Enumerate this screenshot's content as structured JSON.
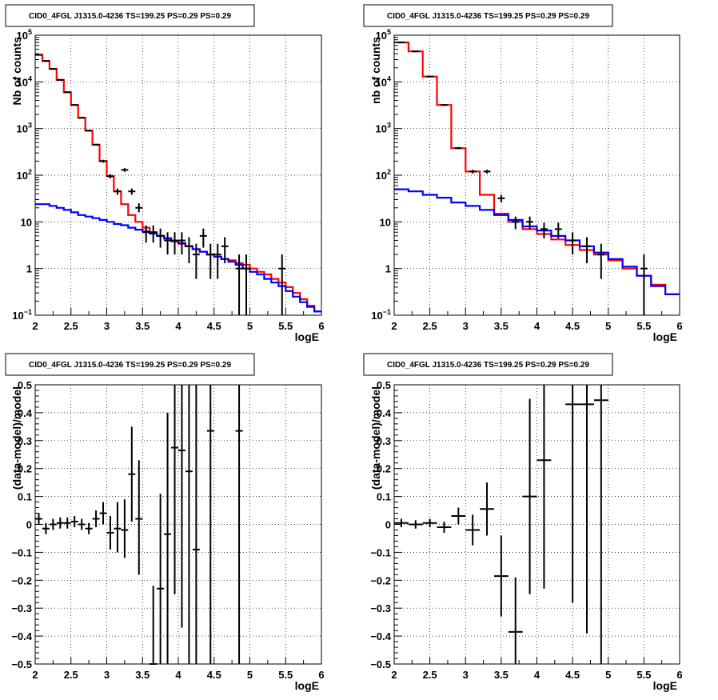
{
  "chart_data": [
    {
      "type": "line",
      "title": "CID0_4FGL J1315.0-4236 TS=199.25 PS=0.29 PS=0.29",
      "xlabel": "logE",
      "ylabel": "Nb of counts",
      "xlim": [
        2,
        6
      ],
      "ylim": [
        0.1,
        100000
      ],
      "yscale": "log",
      "grid": true,
      "xticks": [
        "2",
        "2.5",
        "3",
        "3.5",
        "4",
        "4.5",
        "5",
        "5.5",
        "6"
      ],
      "yticks": [
        {
          "value": 0.1,
          "base": "10",
          "exp": "−1"
        },
        {
          "value": 1,
          "label": "1"
        },
        {
          "value": 10,
          "label": "10"
        },
        {
          "value": 100,
          "base": "10",
          "exp": "2"
        },
        {
          "value": 1000,
          "base": "10",
          "exp": "3"
        },
        {
          "value": 10000,
          "base": "10",
          "exp": "4"
        },
        {
          "value": 100000,
          "base": "10",
          "exp": "5"
        }
      ],
      "bin_edges": [
        2.0,
        2.1,
        2.2,
        2.3,
        2.4,
        2.5,
        2.6,
        2.7,
        2.8,
        2.9,
        3.0,
        3.1,
        3.2,
        3.3,
        3.4,
        3.5,
        3.6,
        3.7,
        3.8,
        3.9,
        4.0,
        4.1,
        4.2,
        4.3,
        4.4,
        4.5,
        4.6,
        4.7,
        4.8,
        4.9,
        5.0,
        5.1,
        5.2,
        5.3,
        5.4,
        5.5,
        5.6,
        5.7,
        5.8,
        5.9,
        6.0
      ],
      "series": [
        {
          "color": "#ff0000",
          "style": "step",
          "values": [
            38000,
            28000,
            19000,
            11000,
            6000,
            3200,
            1700,
            900,
            450,
            200,
            95,
            45,
            24,
            14,
            10,
            7.5,
            6,
            5,
            4.5,
            3.8,
            3.4,
            3.0,
            2.6,
            2.3,
            2.0,
            1.8,
            1.6,
            1.5,
            1.3,
            1.2,
            1.0,
            0.85,
            0.75,
            0.6,
            0.5,
            0.4,
            0.3,
            0.22,
            0.16,
            0.12
          ]
        },
        {
          "color": "#0000ff",
          "style": "step",
          "values": [
            24,
            24,
            22,
            20,
            18,
            16,
            14,
            13,
            12,
            11,
            10,
            9,
            8.5,
            7.5,
            6.8,
            6.2,
            5.6,
            5.0,
            4.4,
            3.9,
            3.5,
            3.0,
            2.6,
            2.3,
            2.0,
            1.8,
            1.6,
            1.4,
            1.2,
            1.0,
            0.85,
            0.75,
            0.6,
            0.5,
            0.42,
            0.33,
            0.25,
            0.19,
            0.15,
            0.12
          ]
        }
      ],
      "points": [
        {
          "x": 2.05,
          "y": 38000,
          "lo": 37600,
          "hi": 38400
        },
        {
          "x": 2.15,
          "y": 28000,
          "lo": 27700,
          "hi": 28300
        },
        {
          "x": 2.25,
          "y": 19000,
          "lo": 18700,
          "hi": 19300
        },
        {
          "x": 2.35,
          "y": 11000,
          "lo": 10800,
          "hi": 11200
        },
        {
          "x": 2.45,
          "y": 6000,
          "lo": 5900,
          "hi": 6100
        },
        {
          "x": 2.55,
          "y": 3200,
          "lo": 3140,
          "hi": 3260
        },
        {
          "x": 2.65,
          "y": 1700,
          "lo": 1660,
          "hi": 1740
        },
        {
          "x": 2.75,
          "y": 900,
          "lo": 870,
          "hi": 930
        },
        {
          "x": 2.85,
          "y": 450,
          "lo": 430,
          "hi": 470
        },
        {
          "x": 2.95,
          "y": 200,
          "lo": 186,
          "hi": 214
        },
        {
          "x": 3.05,
          "y": 95,
          "lo": 85,
          "hi": 105
        },
        {
          "x": 3.15,
          "y": 45,
          "lo": 38,
          "hi": 52
        },
        {
          "x": 3.25,
          "y": 130,
          "lo": 118,
          "hi": 142
        },
        {
          "x": 3.35,
          "y": 45,
          "lo": 38,
          "hi": 52
        },
        {
          "x": 3.45,
          "y": 20,
          "lo": 16,
          "hi": 25
        },
        {
          "x": 3.55,
          "y": 6,
          "lo": 3.6,
          "hi": 8.4
        },
        {
          "x": 3.65,
          "y": 6,
          "lo": 3.6,
          "hi": 8.4
        },
        {
          "x": 3.75,
          "y": 5,
          "lo": 2.8,
          "hi": 7.2
        },
        {
          "x": 3.85,
          "y": 4,
          "lo": 2,
          "hi": 6
        },
        {
          "x": 3.95,
          "y": 4,
          "lo": 2,
          "hi": 6
        },
        {
          "x": 4.05,
          "y": 4,
          "lo": 2,
          "hi": 6
        },
        {
          "x": 4.15,
          "y": 3,
          "lo": 1.3,
          "hi": 4.7
        },
        {
          "x": 4.25,
          "y": 2,
          "lo": 0.6,
          "hi": 3.4
        },
        {
          "x": 4.35,
          "y": 5,
          "lo": 2.8,
          "hi": 7.2
        },
        {
          "x": 4.45,
          "y": 2,
          "lo": 0.6,
          "hi": 3.4
        },
        {
          "x": 4.55,
          "y": 2,
          "lo": 0.6,
          "hi": 3.4
        },
        {
          "x": 4.65,
          "y": 3,
          "lo": 1.3,
          "hi": 4.7
        },
        {
          "x": 4.85,
          "y": 1,
          "lo": 0.1,
          "hi": 2
        },
        {
          "x": 4.95,
          "y": 1,
          "lo": 0.1,
          "hi": 2
        },
        {
          "x": 5.45,
          "y": 1,
          "lo": 0.1,
          "hi": 2
        }
      ]
    },
    {
      "type": "line",
      "title": "CID0_4FGL J1315.0-4236 TS=199.25 PS=0.29 PS=0.29",
      "xlabel": "logE",
      "ylabel": "nb of counts",
      "xlim": [
        2,
        6
      ],
      "ylim": [
        0.1,
        100000
      ],
      "yscale": "log",
      "grid": true,
      "xticks": [
        "2",
        "2.5",
        "3",
        "3.5",
        "4",
        "4.5",
        "5",
        "5.5",
        "6"
      ],
      "yticks": [
        {
          "value": 0.1,
          "base": "10",
          "exp": "−1"
        },
        {
          "value": 1,
          "label": "1"
        },
        {
          "value": 10,
          "label": "10"
        },
        {
          "value": 100,
          "base": "10",
          "exp": "2"
        },
        {
          "value": 1000,
          "base": "10",
          "exp": "3"
        },
        {
          "value": 10000,
          "base": "10",
          "exp": "4"
        },
        {
          "value": 100000,
          "base": "10",
          "exp": "5"
        }
      ],
      "bin_edges": [
        2.0,
        2.2,
        2.4,
        2.6,
        2.8,
        3.0,
        3.2,
        3.4,
        3.6,
        3.8,
        4.0,
        4.2,
        4.4,
        4.6,
        4.8,
        5.0,
        5.2,
        5.4,
        5.6,
        5.8,
        6.0
      ],
      "series": [
        {
          "color": "#ff0000",
          "style": "step",
          "values": [
            70000,
            45000,
            13000,
            3200,
            380,
            120,
            38,
            15,
            10,
            7,
            5.5,
            4.2,
            3.2,
            2.5,
            2.0,
            1.5,
            1.0,
            0.7,
            0.45,
            0.28
          ]
        },
        {
          "color": "#0000ff",
          "style": "step",
          "values": [
            50,
            45,
            38,
            33,
            26,
            22,
            18,
            14,
            11,
            8,
            6.5,
            5,
            4,
            3,
            2.2,
            1.6,
            1.1,
            0.7,
            0.42,
            0.28
          ]
        }
      ],
      "points": [
        {
          "x": 2.1,
          "y": 70000,
          "lo": 69700,
          "hi": 70300
        },
        {
          "x": 2.3,
          "y": 45000,
          "lo": 44800,
          "hi": 45200
        },
        {
          "x": 2.5,
          "y": 13000,
          "lo": 12880,
          "hi": 13120
        },
        {
          "x": 2.7,
          "y": 3200,
          "lo": 3140,
          "hi": 3260
        },
        {
          "x": 2.9,
          "y": 380,
          "lo": 360,
          "hi": 400
        },
        {
          "x": 3.1,
          "y": 120,
          "lo": 109,
          "hi": 131
        },
        {
          "x": 3.3,
          "y": 120,
          "lo": 109,
          "hi": 131
        },
        {
          "x": 3.5,
          "y": 32,
          "lo": 26,
          "hi": 38
        },
        {
          "x": 3.7,
          "y": 10,
          "lo": 7,
          "hi": 13
        },
        {
          "x": 3.9,
          "y": 10,
          "lo": 7,
          "hi": 13
        },
        {
          "x": 4.1,
          "y": 7,
          "lo": 4.4,
          "hi": 9.6
        },
        {
          "x": 4.3,
          "y": 7,
          "lo": 4.4,
          "hi": 9.6
        },
        {
          "x": 4.5,
          "y": 4,
          "lo": 2,
          "hi": 6
        },
        {
          "x": 4.7,
          "y": 3,
          "lo": 1.3,
          "hi": 4.7
        },
        {
          "x": 4.9,
          "y": 2,
          "lo": 0.6,
          "hi": 3.4
        },
        {
          "x": 5.5,
          "y": 1,
          "lo": 0.1,
          "hi": 2
        }
      ]
    },
    {
      "type": "scatter",
      "title": "CID0_4FGL J1315.0-4236 TS=199.25 PS=0.29 PS=0.29",
      "xlabel": "logE",
      "ylabel": "(data-model)/model",
      "xlim": [
        2,
        6
      ],
      "ylim": [
        -0.5,
        0.5
      ],
      "grid": true,
      "xticks": [
        "2",
        "2.5",
        "3",
        "3.5",
        "4",
        "4.5",
        "5",
        "5.5",
        "6"
      ],
      "yticks": [
        "−0.5",
        "−0.4",
        "−0.3",
        "−0.2",
        "−0.1",
        "0",
        "0.1",
        "0.2",
        "0.3",
        "0.4",
        "0.5"
      ],
      "xerr": 0.05,
      "points": [
        {
          "x": 2.05,
          "y": 0.02,
          "lo": 0.0,
          "hi": 0.04
        },
        {
          "x": 2.15,
          "y": -0.015,
          "lo": -0.035,
          "hi": 0.005
        },
        {
          "x": 2.25,
          "y": 0.0,
          "lo": -0.02,
          "hi": 0.02
        },
        {
          "x": 2.35,
          "y": 0.005,
          "lo": -0.015,
          "hi": 0.025
        },
        {
          "x": 2.45,
          "y": 0.005,
          "lo": -0.015,
          "hi": 0.025
        },
        {
          "x": 2.55,
          "y": 0.01,
          "lo": -0.01,
          "hi": 0.03
        },
        {
          "x": 2.65,
          "y": 0.0,
          "lo": -0.02,
          "hi": 0.02
        },
        {
          "x": 2.75,
          "y": -0.015,
          "lo": -0.035,
          "hi": 0.005
        },
        {
          "x": 2.85,
          "y": 0.02,
          "lo": -0.01,
          "hi": 0.05
        },
        {
          "x": 2.95,
          "y": 0.04,
          "lo": 0.0,
          "hi": 0.08
        },
        {
          "x": 3.05,
          "y": -0.03,
          "lo": -0.09,
          "hi": 0.03
        },
        {
          "x": 3.15,
          "y": -0.015,
          "lo": -0.1,
          "hi": 0.08
        },
        {
          "x": 3.25,
          "y": -0.02,
          "lo": -0.12,
          "hi": 0.09
        },
        {
          "x": 3.35,
          "y": 0.18,
          "lo": 0.01,
          "hi": 0.35
        },
        {
          "x": 3.45,
          "y": 0.02,
          "lo": -0.18,
          "hi": 0.23
        },
        {
          "x": 3.65,
          "y": -0.5,
          "lo": -0.5,
          "hi": -0.22
        },
        {
          "x": 3.75,
          "y": -0.23,
          "lo": -0.5,
          "hi": 0.11
        },
        {
          "x": 3.85,
          "y": -0.035,
          "lo": -0.5,
          "hi": 0.4
        },
        {
          "x": 3.95,
          "y": 0.275,
          "lo": -0.25,
          "hi": 0.5
        },
        {
          "x": 4.05,
          "y": 0.265,
          "lo": -0.37,
          "hi": 0.5
        },
        {
          "x": 4.15,
          "y": 0.19,
          "lo": -0.5,
          "hi": 0.5
        },
        {
          "x": 4.25,
          "y": -0.09,
          "lo": -0.5,
          "hi": 0.5
        },
        {
          "x": 4.45,
          "y": 0.335,
          "lo": -0.5,
          "hi": 0.5
        },
        {
          "x": 4.85,
          "y": 0.335,
          "lo": -0.5,
          "hi": 0.5
        }
      ]
    },
    {
      "type": "scatter",
      "title": "CID0_4FGL J1315.0-4236 TS=199.25 PS=0.29 PS=0.29",
      "xlabel": "logE",
      "ylabel": "(data-model)/model",
      "xlim": [
        2,
        6
      ],
      "ylim": [
        -0.5,
        0.5
      ],
      "grid": true,
      "xticks": [
        "2",
        "2.5",
        "3",
        "3.5",
        "4",
        "4.5",
        "5",
        "5.5",
        "6"
      ],
      "yticks": [
        "−0.5",
        "−0.4",
        "−0.3",
        "−0.2",
        "−0.1",
        "0",
        "0.1",
        "0.2",
        "0.3",
        "0.4",
        "0.5"
      ],
      "xerr": 0.1,
      "points": [
        {
          "x": 2.1,
          "y": 0.005,
          "lo": -0.01,
          "hi": 0.02
        },
        {
          "x": 2.3,
          "y": 0.0,
          "lo": -0.015,
          "hi": 0.015
        },
        {
          "x": 2.5,
          "y": 0.005,
          "lo": -0.01,
          "hi": 0.02
        },
        {
          "x": 2.7,
          "y": -0.01,
          "lo": -0.03,
          "hi": 0.01
        },
        {
          "x": 2.9,
          "y": 0.03,
          "lo": 0.0,
          "hi": 0.06
        },
        {
          "x": 3.1,
          "y": -0.02,
          "lo": -0.075,
          "hi": 0.035
        },
        {
          "x": 3.3,
          "y": 0.055,
          "lo": -0.04,
          "hi": 0.15
        },
        {
          "x": 3.5,
          "y": -0.185,
          "lo": -0.33,
          "hi": -0.04
        },
        {
          "x": 3.7,
          "y": -0.385,
          "lo": -0.5,
          "hi": -0.19
        },
        {
          "x": 3.9,
          "y": 0.1,
          "lo": -0.25,
          "hi": 0.45
        },
        {
          "x": 4.1,
          "y": 0.23,
          "lo": -0.23,
          "hi": 0.5
        },
        {
          "x": 4.5,
          "y": 0.43,
          "lo": -0.28,
          "hi": 0.5
        },
        {
          "x": 4.7,
          "y": 0.43,
          "lo": -0.39,
          "hi": 0.5
        },
        {
          "x": 4.9,
          "y": 0.445,
          "lo": -0.5,
          "hi": 0.5
        }
      ]
    }
  ]
}
